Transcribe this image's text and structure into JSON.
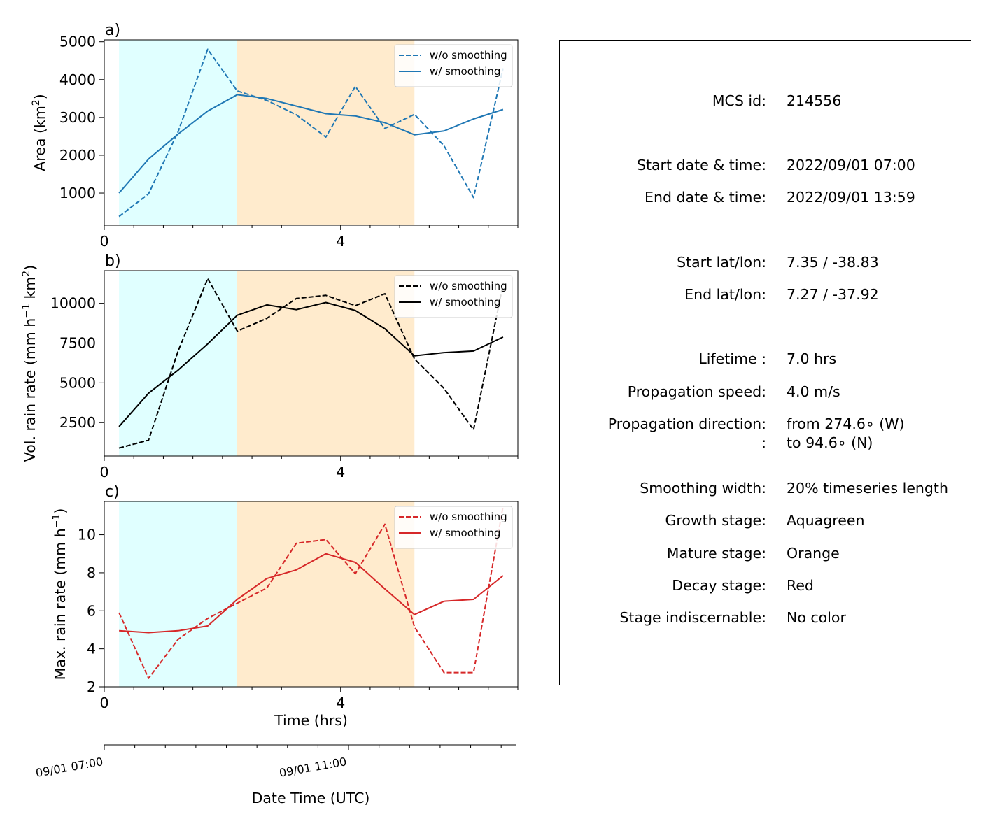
{
  "chart_data": [
    {
      "panel": "a)",
      "type": "line",
      "ylabel": "Area  (km²)",
      "ylabel_main": "Area  (km",
      "ylabel_sup": "2",
      "ylabel_tail": ")",
      "xlim": [
        0,
        7
      ],
      "ylim": [
        150,
        5050
      ],
      "yticks": [
        1000,
        2000,
        3000,
        4000,
        5000
      ],
      "ytick_labels": [
        "1000",
        "2000",
        "3000",
        "4000",
        "5000"
      ],
      "xticks": [
        0,
        4
      ],
      "xtick_labels": [
        "0",
        "4"
      ],
      "color": "#1f77b4",
      "legend_position": "upper right",
      "stage_bands": [
        {
          "stage": "growth",
          "start": 0.25,
          "end": 2.25,
          "color": "#e0ffff"
        },
        {
          "stage": "mature",
          "start": 2.25,
          "end": 5.25,
          "color": "#ffebcd"
        }
      ],
      "series": [
        {
          "name": "w/o smoothing",
          "style": "dashed",
          "x": [
            0.25,
            0.75,
            1.25,
            1.75,
            2.25,
            2.75,
            3.25,
            3.75,
            4.25,
            4.75,
            5.25,
            5.75,
            6.25,
            6.75
          ],
          "y": [
            380,
            980,
            2620,
            4800,
            3700,
            3450,
            3070,
            2480,
            3820,
            2710,
            3080,
            2250,
            880,
            4300
          ]
        },
        {
          "name": "w/ smoothing",
          "style": "solid",
          "x": [
            0.25,
            0.75,
            1.25,
            1.75,
            2.25,
            2.75,
            3.25,
            3.75,
            4.25,
            4.75,
            5.25,
            5.75,
            6.25,
            6.75
          ],
          "y": [
            1000,
            1900,
            2560,
            3170,
            3600,
            3500,
            3300,
            3100,
            3040,
            2860,
            2540,
            2640,
            2960,
            3210
          ]
        }
      ]
    },
    {
      "panel": "b)",
      "type": "line",
      "ylabel": "Vol. rain rate (mm h⁻¹ km²)",
      "ylabel_main": "Vol. rain rate (mm h",
      "ylabel_sup": "−1",
      "ylabel_mid": " km",
      "ylabel_sup2": "2",
      "ylabel_tail": ")",
      "xlim": [
        0,
        7
      ],
      "ylim": [
        400,
        12050
      ],
      "yticks": [
        2500,
        5000,
        7500,
        10000
      ],
      "ytick_labels": [
        "2500",
        "5000",
        "7500",
        "10000"
      ],
      "xticks": [
        0,
        4
      ],
      "xtick_labels": [
        "0",
        "4"
      ],
      "color": "#000000",
      "legend_position": "upper right",
      "stage_bands": [
        {
          "stage": "growth",
          "start": 0.25,
          "end": 2.25,
          "color": "#e0ffff"
        },
        {
          "stage": "mature",
          "start": 2.25,
          "end": 5.25,
          "color": "#ffebcd"
        }
      ],
      "series": [
        {
          "name": "w/o smoothing",
          "style": "dashed",
          "x": [
            0.25,
            0.75,
            1.25,
            1.75,
            2.25,
            2.75,
            3.25,
            3.75,
            4.25,
            4.75,
            5.25,
            5.75,
            6.25,
            6.75
          ],
          "y": [
            900,
            1400,
            7000,
            11550,
            8250,
            9050,
            10300,
            10500,
            9850,
            10600,
            6500,
            4650,
            2050,
            11200
          ]
        },
        {
          "name": "w/ smoothing",
          "style": "solid",
          "x": [
            0.25,
            0.75,
            1.25,
            1.75,
            2.25,
            2.75,
            3.25,
            3.75,
            4.25,
            4.75,
            5.25,
            5.75,
            6.25,
            6.75
          ],
          "y": [
            2250,
            4350,
            5800,
            7450,
            9250,
            9900,
            9600,
            10050,
            9550,
            8400,
            6700,
            6900,
            7000,
            7880
          ]
        }
      ]
    },
    {
      "panel": "c)",
      "type": "line",
      "ylabel": "Max. rain rate  (mm h⁻¹)",
      "ylabel_main": "Max. rain rate  (mm h",
      "ylabel_sup": "−1",
      "ylabel_tail": ")",
      "xlabel": "Time (hrs)",
      "xlim": [
        0,
        7
      ],
      "ylim": [
        2,
        11.75
      ],
      "yticks": [
        2,
        4,
        6,
        8,
        10
      ],
      "ytick_labels": [
        "2",
        "4",
        "6",
        "8",
        "10"
      ],
      "xticks": [
        0,
        4
      ],
      "xtick_labels": [
        "0",
        "4"
      ],
      "color": "#d62728",
      "legend_position": "upper right",
      "stage_bands": [
        {
          "stage": "growth",
          "start": 0.25,
          "end": 2.25,
          "color": "#e0ffff"
        },
        {
          "stage": "mature",
          "start": 2.25,
          "end": 5.25,
          "color": "#ffebcd"
        }
      ],
      "series": [
        {
          "name": "w/o smoothing",
          "style": "dashed",
          "x": [
            0.25,
            0.75,
            1.25,
            1.75,
            2.25,
            2.75,
            3.25,
            3.75,
            4.25,
            4.75,
            5.25,
            5.75,
            6.25,
            6.75
          ],
          "y": [
            5.9,
            2.45,
            4.5,
            5.6,
            6.4,
            7.2,
            9.55,
            9.75,
            7.95,
            10.55,
            5.15,
            2.75,
            2.75,
            11.5
          ]
        },
        {
          "name": "w/ smoothing",
          "style": "solid",
          "x": [
            0.25,
            0.75,
            1.25,
            1.75,
            2.25,
            2.75,
            3.25,
            3.75,
            4.25,
            4.75,
            5.25,
            5.75,
            6.25,
            6.75
          ],
          "y": [
            4.95,
            4.85,
            4.95,
            5.2,
            6.6,
            7.7,
            8.15,
            9.0,
            8.55,
            7.15,
            5.8,
            6.5,
            6.6,
            7.85
          ]
        }
      ]
    }
  ],
  "datetime_axis": {
    "xlabel": "Date Time (UTC)",
    "ticks": [
      "2022-09-01 07:00",
      "2022-09-01 11:00"
    ],
    "tick_labels": [
      "09/01 07:00",
      "09/01 11:00"
    ],
    "range": [
      "2022-09-01 07:00",
      "2022-09-01 13:45"
    ]
  },
  "info": {
    "rows": [
      {
        "label": "MCS id:",
        "value": "214556"
      },
      {
        "label": "Start date & time:",
        "value": "2022/09/01 07:00"
      },
      {
        "label": "End date & time:",
        "value": "2022/09/01 13:59"
      },
      {
        "label": "Start lat/lon:",
        "value": "7.35 / -38.83"
      },
      {
        "label": "End lat/lon:",
        "value": "7.27 / -37.92"
      },
      {
        "label": "Lifetime :",
        "value": "7.0 hrs"
      },
      {
        "label": "Propagation speed:",
        "value": "4.0 m/s"
      },
      {
        "label": "Propagation direction:",
        "value": "from 274.6∘ (W)"
      },
      {
        "label": ":",
        "value": "to    94.6∘ (N)"
      },
      {
        "label": "Smoothing width:",
        "value": "20% timeseries length"
      },
      {
        "label": "Growth stage:",
        "value": "Aquagreen"
      },
      {
        "label": "Mature stage:",
        "value": "Orange"
      },
      {
        "label": "Decay stage:",
        "value": "Red"
      },
      {
        "label": "Stage indiscernable:",
        "value": "No color"
      }
    ]
  }
}
